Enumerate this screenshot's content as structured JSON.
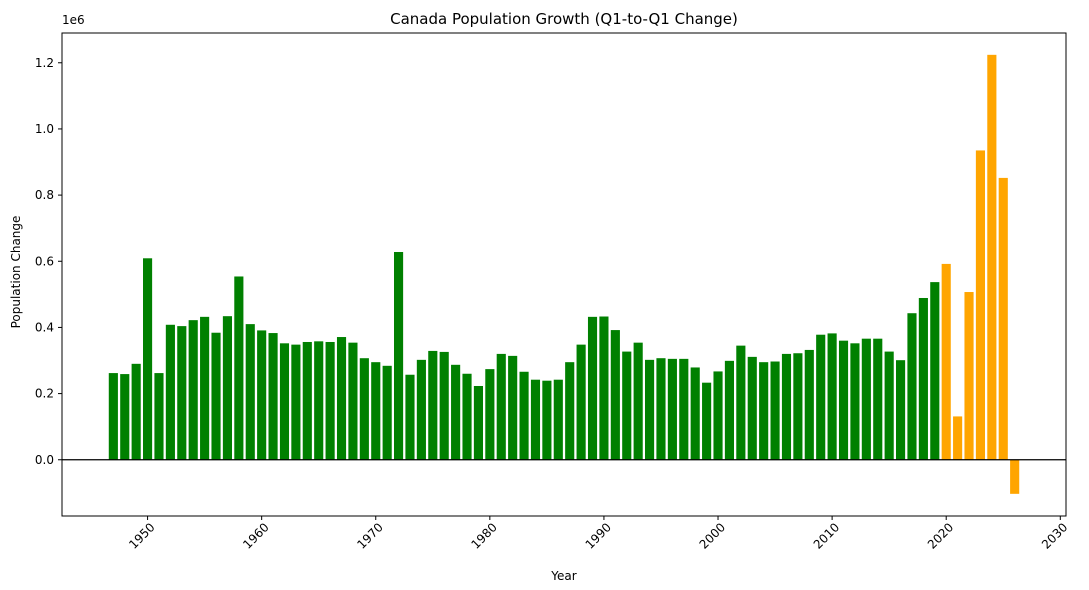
{
  "chart_data": {
    "type": "bar",
    "title": "Canada Population Growth (Q1-to-Q1 Change)",
    "xlabel": "Year",
    "ylabel": "Population Change",
    "y_offset_label": "1e6",
    "xlim": [
      1942.5,
      2030.5
    ],
    "ylim": [
      -0.17,
      1.29
    ],
    "x_ticks": [
      1950,
      1960,
      1970,
      1980,
      1990,
      2000,
      2010,
      2020,
      2030
    ],
    "x_tick_labels": [
      "1950",
      "1960",
      "1970",
      "1980",
      "1990",
      "2000",
      "2010",
      "2020",
      "2030"
    ],
    "y_ticks": [
      0.0,
      0.2,
      0.4,
      0.6,
      0.8,
      1.0,
      1.2
    ],
    "y_tick_labels": [
      "0.0",
      "0.2",
      "0.4",
      "0.6",
      "0.8",
      "1.0",
      "1.2"
    ],
    "zero_line": true,
    "grid": false,
    "series": [
      {
        "color": "#008000",
        "x": [
          1947,
          1948,
          1949,
          1950,
          1951,
          1952,
          1953,
          1954,
          1955,
          1956,
          1957,
          1958,
          1959,
          1960,
          1961,
          1962,
          1963,
          1964,
          1965,
          1966,
          1967,
          1968,
          1969,
          1970,
          1971,
          1972,
          1973,
          1974,
          1975,
          1976,
          1977,
          1978,
          1979,
          1980,
          1981,
          1982,
          1983,
          1984,
          1985,
          1986,
          1987,
          1988,
          1989,
          1990,
          1991,
          1992,
          1993,
          1994,
          1995,
          1996,
          1997,
          1998,
          1999,
          2000,
          2001,
          2002,
          2003,
          2004,
          2005,
          2006,
          2007,
          2008,
          2009,
          2010,
          2011,
          2012,
          2013,
          2014,
          2015,
          2016,
          2017,
          2018,
          2019
        ],
        "values": [
          0.262,
          0.259,
          0.29,
          0.609,
          0.262,
          0.408,
          0.404,
          0.422,
          0.432,
          0.384,
          0.434,
          0.554,
          0.41,
          0.391,
          0.383,
          0.352,
          0.348,
          0.356,
          0.358,
          0.356,
          0.371,
          0.354,
          0.307,
          0.295,
          0.284,
          0.628,
          0.257,
          0.302,
          0.329,
          0.326,
          0.287,
          0.26,
          0.223,
          0.274,
          0.32,
          0.314,
          0.266,
          0.242,
          0.239,
          0.242,
          0.295,
          0.348,
          0.432,
          0.433,
          0.392,
          0.327,
          0.354,
          0.302,
          0.307,
          0.305,
          0.305,
          0.279,
          0.233,
          0.267,
          0.299,
          0.345,
          0.311,
          0.295,
          0.297,
          0.32,
          0.322,
          0.332,
          0.378,
          0.382,
          0.36,
          0.352,
          0.366,
          0.366,
          0.327,
          0.301,
          0.443,
          0.489,
          0.537
        ]
      },
      {
        "color": "#ffa500",
        "x": [
          2020,
          2021,
          2022,
          2023,
          2024,
          2025,
          2026
        ],
        "values": [
          0.592,
          0.131,
          0.507,
          0.935,
          1.224,
          0.852,
          -0.103
        ]
      }
    ]
  }
}
